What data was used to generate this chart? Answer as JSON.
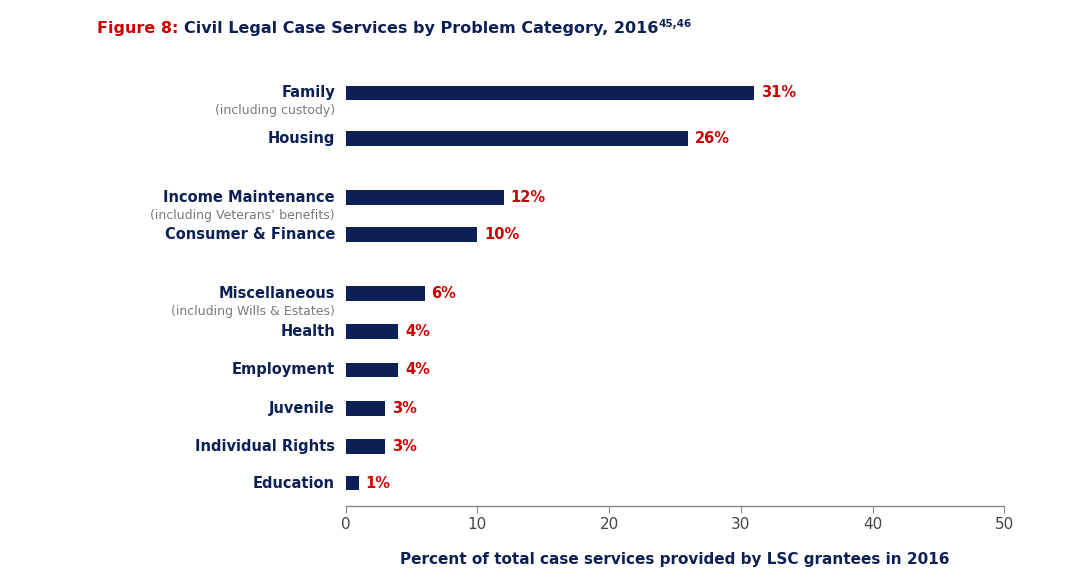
{
  "title_red": "Figure 8: ",
  "title_dark": "Civil Legal Case Services by Problem Category, 2016",
  "title_super": "45,46",
  "bar_labels": [
    "Family",
    "Housing",
    "Income Maintenance",
    "Consumer & Finance",
    "Miscellaneous",
    "Health",
    "Employment",
    "Juvenile",
    "Individual Rights",
    "Education"
  ],
  "values": [
    31,
    26,
    12,
    10,
    6,
    4,
    4,
    3,
    3,
    1
  ],
  "subtitles": [
    "(including custody)",
    null,
    "(including Veterans’ benefits)",
    null,
    "(including Wills & Estates)",
    null,
    null,
    null,
    null,
    null
  ],
  "y_positions": [
    14.8,
    13.2,
    11.1,
    9.8,
    7.7,
    6.35,
    5.0,
    3.65,
    2.3,
    1.0
  ],
  "bar_height": 0.52,
  "bar_color": "#0d2055",
  "value_color": "#cc0000",
  "label_color": "#0d2055",
  "subtitle_color": "#7a7a7a",
  "xlabel": "Percent of total case services provided by LSC grantees in 2016",
  "xlim": [
    0,
    50
  ],
  "xticks": [
    0,
    10,
    20,
    30,
    40,
    50
  ],
  "background_color": "#ffffff",
  "title_color_red": "#cc0000",
  "title_color_dark": "#0d2055",
  "figsize": [
    10.8,
    5.88
  ],
  "dpi": 100
}
